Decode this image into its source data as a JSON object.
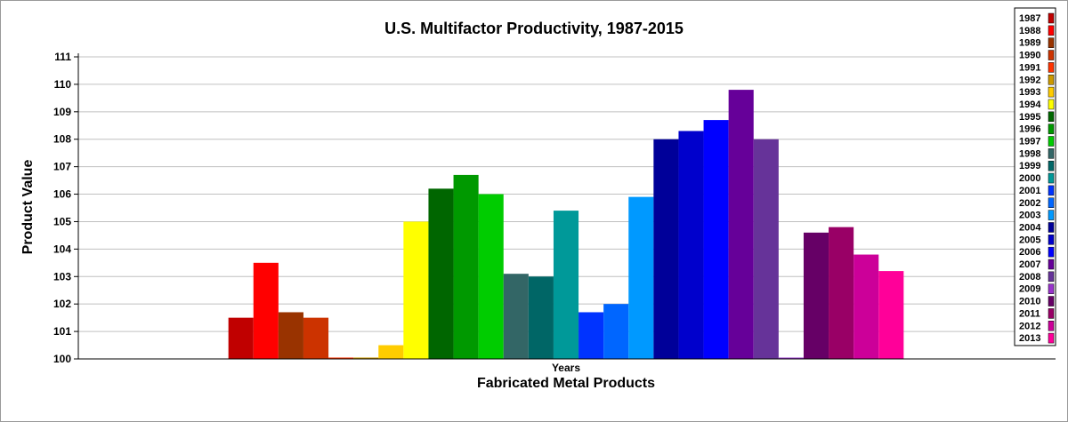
{
  "chart_data": {
    "type": "bar",
    "title": "U.S. Multifactor Productivity, 1987-2015",
    "xlabel": "Fabricated Metal Products",
    "ylabel": "Product Value",
    "categories": [
      "Years"
    ],
    "ylim": [
      100,
      111
    ],
    "yticks": [
      100,
      101,
      102,
      103,
      104,
      105,
      106,
      107,
      108,
      109,
      110,
      111
    ],
    "grid": true,
    "legend_position": "right",
    "series": [
      {
        "name": "1987",
        "values": [
          101.5
        ],
        "color": "#c00000"
      },
      {
        "name": "1988",
        "values": [
          103.5
        ],
        "color": "#ff0000"
      },
      {
        "name": "1989",
        "values": [
          101.7
        ],
        "color": "#993300"
      },
      {
        "name": "1990",
        "values": [
          101.5
        ],
        "color": "#cc3300"
      },
      {
        "name": "1991",
        "values": [
          100.05
        ],
        "color": "#ff3300"
      },
      {
        "name": "1992",
        "values": [
          100.05
        ],
        "color": "#cc9900"
      },
      {
        "name": "1993",
        "values": [
          100.5
        ],
        "color": "#ffcc00"
      },
      {
        "name": "1994",
        "values": [
          105.0
        ],
        "color": "#ffff00"
      },
      {
        "name": "1995",
        "values": [
          106.2
        ],
        "color": "#006600"
      },
      {
        "name": "1996",
        "values": [
          106.7
        ],
        "color": "#009900"
      },
      {
        "name": "1997",
        "values": [
          106.0
        ],
        "color": "#00cc00"
      },
      {
        "name": "1998",
        "values": [
          103.1
        ],
        "color": "#336666"
      },
      {
        "name": "1999",
        "values": [
          103.0
        ],
        "color": "#006666"
      },
      {
        "name": "2000",
        "values": [
          105.4
        ],
        "color": "#009999"
      },
      {
        "name": "2001",
        "values": [
          101.7
        ],
        "color": "#0033ff"
      },
      {
        "name": "2002",
        "values": [
          102.0
        ],
        "color": "#0066ff"
      },
      {
        "name": "2003",
        "values": [
          105.9
        ],
        "color": "#0099ff"
      },
      {
        "name": "2004",
        "values": [
          108.0
        ],
        "color": "#000099"
      },
      {
        "name": "2005",
        "values": [
          108.3
        ],
        "color": "#0000cc"
      },
      {
        "name": "2006",
        "values": [
          108.7
        ],
        "color": "#0000ff"
      },
      {
        "name": "2007",
        "values": [
          109.8
        ],
        "color": "#660099"
      },
      {
        "name": "2008",
        "values": [
          108.0
        ],
        "color": "#663399"
      },
      {
        "name": "2009",
        "values": [
          100.02
        ],
        "color": "#9933cc"
      },
      {
        "name": "2010",
        "values": [
          104.6
        ],
        "color": "#660066"
      },
      {
        "name": "2011",
        "values": [
          104.8
        ],
        "color": "#990066"
      },
      {
        "name": "2012",
        "values": [
          103.8
        ],
        "color": "#cc0099"
      },
      {
        "name": "2013",
        "values": [
          103.2
        ],
        "color": "#ff0099"
      }
    ]
  }
}
